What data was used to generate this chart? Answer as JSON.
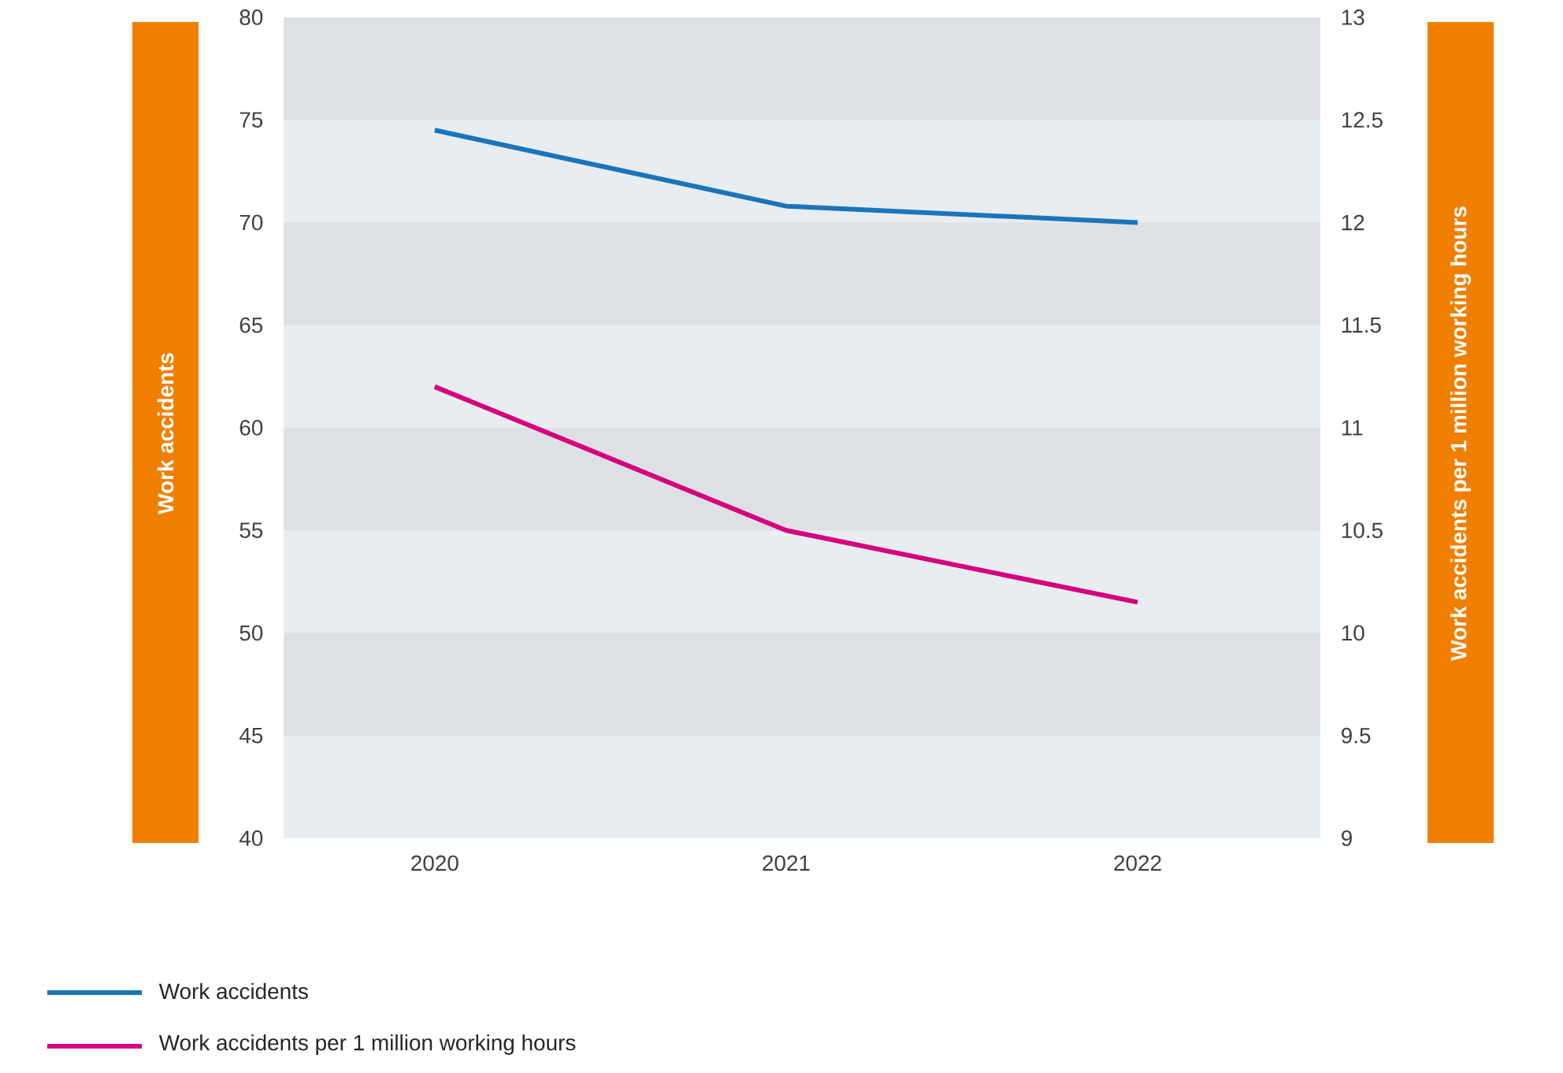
{
  "chart_data": {
    "type": "line",
    "ylabel": "Work accidents",
    "y2label": "Work accidents per 1 million working hours",
    "categories": [
      "2020",
      "2021",
      "2022"
    ],
    "series": [
      {
        "name": "Work accidents",
        "color": "#1a75bb",
        "values": [
          74.5,
          70.8,
          70
        ]
      },
      {
        "name": "Work accidents per 1 million working hours",
        "color": "#d6007e",
        "values": [
          11.2,
          10.5,
          10.15
        ],
        "axis": "y2"
      }
    ],
    "ylim": [
      40,
      80
    ],
    "yticks": [
      40,
      45,
      50,
      55,
      60,
      65,
      70,
      75,
      80
    ],
    "y2lim": [
      9,
      13
    ],
    "y2ticks": [
      9,
      9.5,
      10,
      10.5,
      11,
      11.5,
      12,
      12.5,
      13
    ],
    "bands": [
      {
        "axis": "y",
        "from": 75,
        "to": 80,
        "color": "#dde1e5"
      },
      {
        "axis": "y",
        "from": 65,
        "to": 70,
        "color": "#dde1e5"
      },
      {
        "axis": "y",
        "from": 55,
        "to": 60,
        "color": "#dde1e5"
      },
      {
        "axis": "y",
        "from": 45,
        "to": 50,
        "color": "#dde1e5"
      }
    ],
    "legend": "bottom",
    "marker": "none",
    "line_style": "solid"
  }
}
